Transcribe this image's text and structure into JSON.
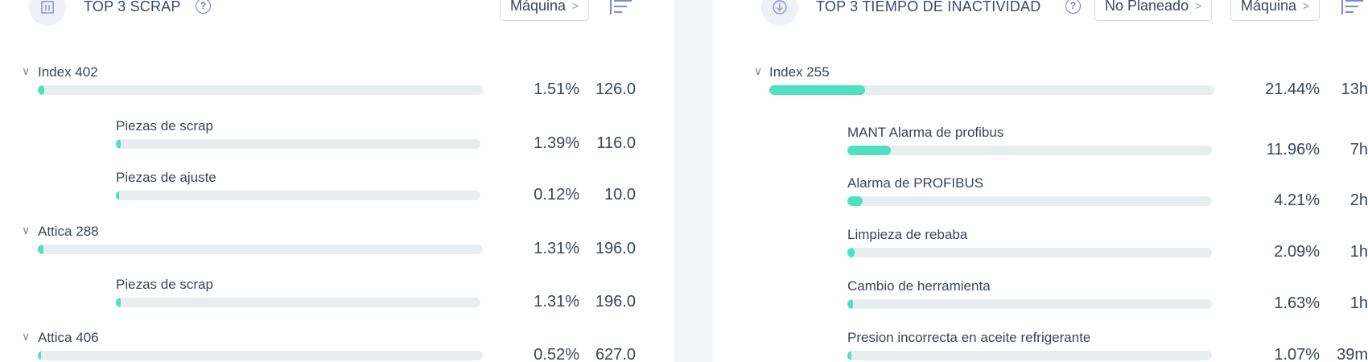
{
  "scrap": {
    "title": "TOP 3 SCRAP",
    "help": "?",
    "filter_label": "Máquina",
    "rows": [
      {
        "label": "Index 402",
        "level": 0,
        "pct": "1.51%",
        "value": "126.0",
        "fraction": 0.0151
      },
      {
        "label": "Piezas de scrap",
        "level": 1,
        "pct": "1.39%",
        "value": "116.0",
        "fraction": 0.0139
      },
      {
        "label": "Piezas de ajuste",
        "level": 1,
        "pct": "0.12%",
        "value": "10.0",
        "fraction": 0.0012
      },
      {
        "label": "Attica 288",
        "level": 0,
        "pct": "1.31%",
        "value": "196.0",
        "fraction": 0.0131
      },
      {
        "label": "Piezas de scrap",
        "level": 1,
        "pct": "1.31%",
        "value": "196.0",
        "fraction": 0.0131
      },
      {
        "label": "Attica 406",
        "level": 0,
        "pct": "0.52%",
        "value": "627.0",
        "fraction": 0.0052
      }
    ]
  },
  "downtime": {
    "title": "TOP 3 TIEMPO DE INACTIVIDAD",
    "help": "?",
    "filter_plan_label": "No Planeado",
    "filter_label": "Máquina",
    "rows": [
      {
        "label": "Index 255",
        "level": 0,
        "pct": "21.44%",
        "value": "13h",
        "fraction": 0.2144
      },
      {
        "label": "MANT Alarma de profibus",
        "level": 1,
        "pct": "11.96%",
        "value": "7h",
        "fraction": 0.1196
      },
      {
        "label": "Alarma de PROFIBUS",
        "level": 1,
        "pct": "4.21%",
        "value": "2h",
        "fraction": 0.0421
      },
      {
        "label": "Limpieza de rebaba",
        "level": 1,
        "pct": "2.09%",
        "value": "1h",
        "fraction": 0.0209
      },
      {
        "label": "Cambio de herramienta",
        "level": 1,
        "pct": "1.63%",
        "value": "1h",
        "fraction": 0.0163
      },
      {
        "label": "Presion incorrecta en aceite refrigerante",
        "level": 1,
        "pct": "1.07%",
        "value": "39m",
        "fraction": 0.0107
      }
    ]
  },
  "icons": {
    "scrap_header": "bar-chart-icon",
    "downtime_header": "down-arrow-circle-icon",
    "help": "help-circle-icon",
    "sort": "sort-icon",
    "chevron_right": "chevron-right-icon",
    "chevron_down": "chevron-down-icon"
  },
  "colors": {
    "bar_fill": "#4fe0c1",
    "bar_track": "#e8edf0",
    "accent": "#6c78d8"
  }
}
